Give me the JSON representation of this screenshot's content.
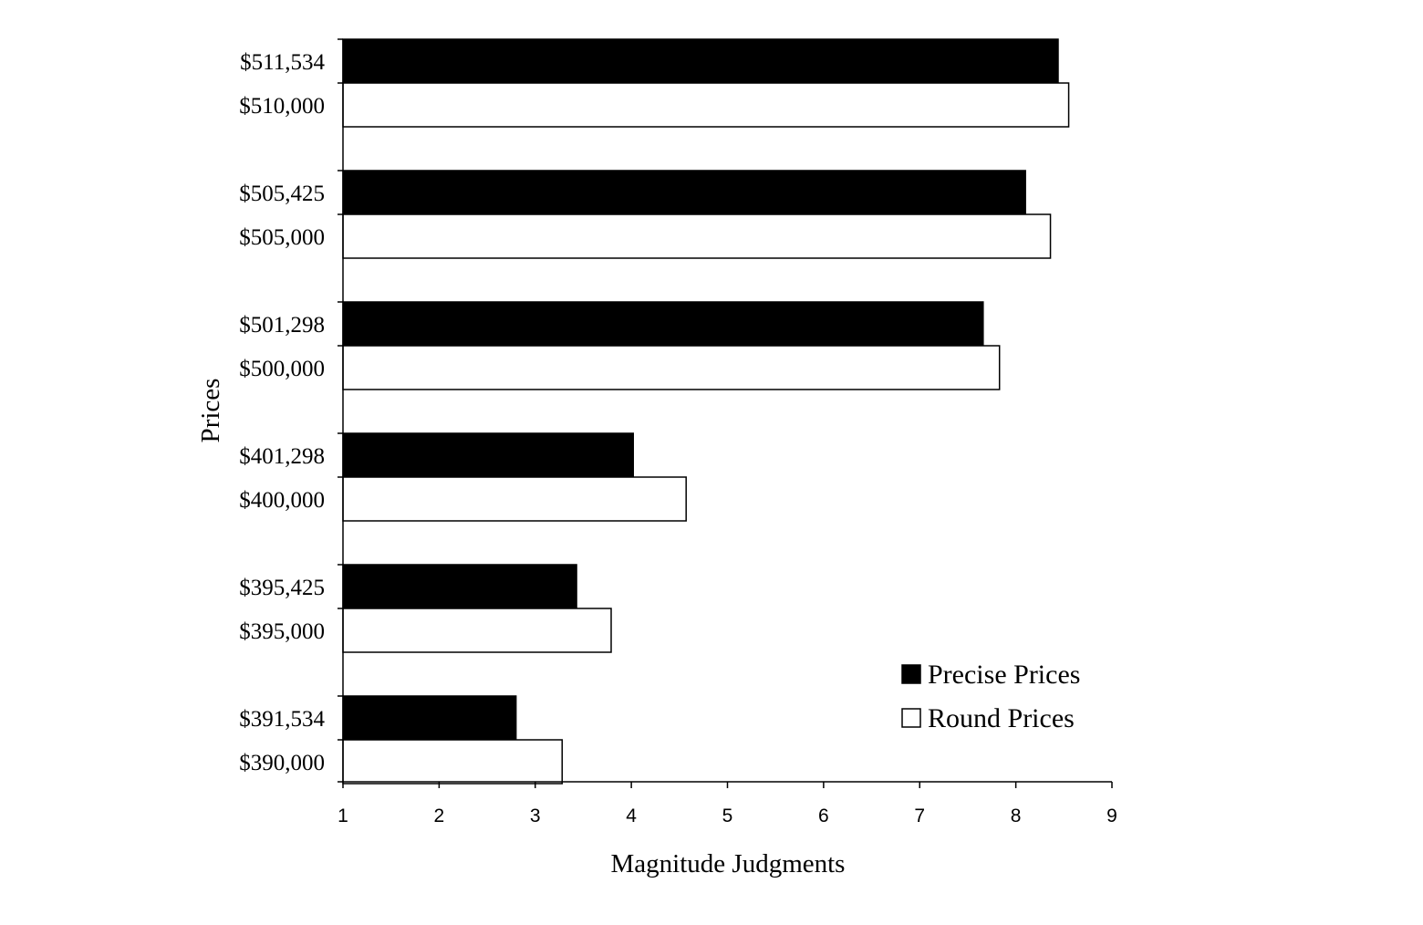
{
  "chart_data": {
    "type": "bar",
    "orientation": "horizontal",
    "title": "",
    "xlabel": "Magnitude Judgments",
    "ylabel": "Prices",
    "xlim": [
      1,
      9
    ],
    "xticks": [
      "1",
      "2",
      "3",
      "4",
      "5",
      "6",
      "7",
      "8",
      "9"
    ],
    "grid": false,
    "legend_position": "bottom-right",
    "colors": {
      "precise": "#000000",
      "round": "#ffffff",
      "outline": "#000000"
    },
    "groups": [
      {
        "precise_label": "$511,534",
        "round_label": "$510,000",
        "precise": 8.44,
        "round": 8.55
      },
      {
        "precise_label": "$505,425",
        "round_label": "$505,000",
        "precise": 8.1,
        "round": 8.36
      },
      {
        "precise_label": "$501,298",
        "round_label": "$500,000",
        "precise": 7.66,
        "round": 7.83
      },
      {
        "precise_label": "$401,298",
        "round_label": "$400,000",
        "precise": 4.02,
        "round": 4.57
      },
      {
        "precise_label": "$395,425",
        "round_label": "$395,000",
        "precise": 3.43,
        "round": 3.79
      },
      {
        "precise_label": "$391,534",
        "round_label": "$390,000",
        "precise": 2.8,
        "round": 3.28
      }
    ],
    "series": [
      {
        "name": "Precise Prices",
        "key": "precise"
      },
      {
        "name": "Round Prices",
        "key": "round"
      }
    ]
  }
}
